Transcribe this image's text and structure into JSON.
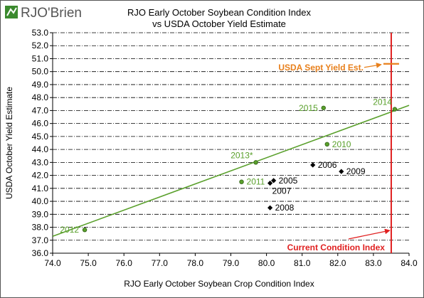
{
  "logo": {
    "text": "RJO'Brien"
  },
  "chart_data": {
    "type": "scatter",
    "title": "RJO Early October Soybean Condition Index",
    "subtitle": "vs USDA October Yield Estimate",
    "xlabel": "RJO Early October Soybean Crop Condition Index",
    "ylabel": "USDA October Yield Estimate",
    "xlim": [
      74.0,
      84.0
    ],
    "ylim": [
      36.0,
      53.0
    ],
    "x_ticks": [
      74,
      75,
      76,
      77,
      78,
      79,
      80,
      81,
      82,
      83,
      84
    ],
    "y_ticks": [
      36,
      37,
      38,
      39,
      40,
      41,
      42,
      43,
      44,
      45,
      46,
      47,
      48,
      49,
      50,
      51,
      52,
      53
    ],
    "grid": "horizontal dash-dot",
    "points": [
      {
        "label": "2005",
        "x": 80.2,
        "y": 41.6,
        "color": "#000000",
        "shape": "diamond",
        "label_pos": "right"
      },
      {
        "label": "2006",
        "x": 81.3,
        "y": 42.8,
        "color": "#000000",
        "shape": "diamond",
        "label_pos": "right"
      },
      {
        "label": "2007",
        "x": 80.1,
        "y": 41.4,
        "color": "#000000",
        "shape": "diamond",
        "label_pos": "below-right"
      },
      {
        "label": "2008",
        "x": 80.1,
        "y": 39.5,
        "color": "#000000",
        "shape": "diamond",
        "label_pos": "right"
      },
      {
        "label": "2009",
        "x": 82.1,
        "y": 42.3,
        "color": "#000000",
        "shape": "diamond",
        "label_pos": "right"
      },
      {
        "label": "2010",
        "x": 81.7,
        "y": 44.4,
        "color": "#5aa02c",
        "shape": "circle",
        "label_pos": "right"
      },
      {
        "label": "2011",
        "x": 79.3,
        "y": 41.5,
        "color": "#5aa02c",
        "shape": "circle",
        "label_pos": "right"
      },
      {
        "label": "2012",
        "x": 74.9,
        "y": 37.8,
        "color": "#5aa02c",
        "shape": "circle",
        "label_pos": "left"
      },
      {
        "label": "2013*",
        "x": 79.7,
        "y": 43.0,
        "color": "#5aa02c",
        "shape": "circle",
        "label_pos": "above-left"
      },
      {
        "label": "2014",
        "x": 83.6,
        "y": 47.1,
        "color": "#5aa02c",
        "shape": "circle",
        "label_pos": "above-left"
      },
      {
        "label": "2015",
        "x": 81.6,
        "y": 47.2,
        "color": "#5aa02c",
        "shape": "circle",
        "label_pos": "left"
      }
    ],
    "trendline": {
      "x": [
        74.0,
        84.0
      ],
      "y": [
        37.3,
        47.4
      ],
      "color": "#5aa02c"
    },
    "current_condition_index": {
      "x": 83.5,
      "label": "Current Condition Index",
      "color": "#e02020"
    },
    "usda_sept_yield": {
      "x": 83.5,
      "y": 50.6,
      "label": "USDA Sept Yield Est.",
      "color": "#e8801c"
    }
  }
}
